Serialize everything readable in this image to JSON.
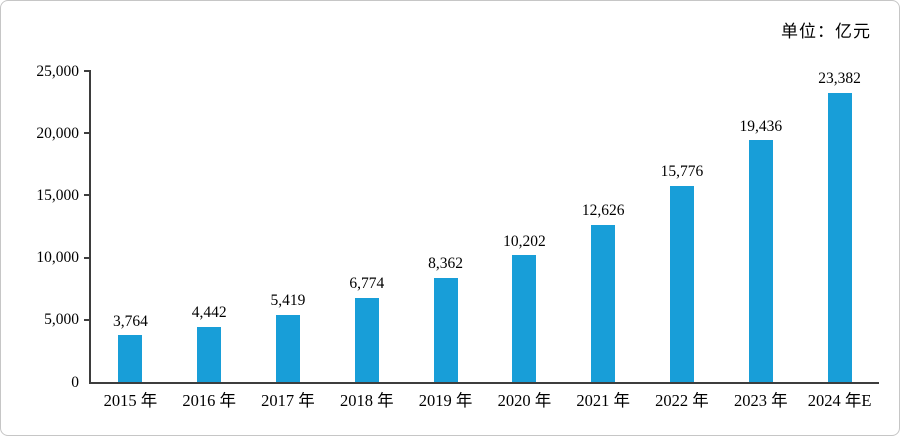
{
  "unit_label": "单位：亿元",
  "colors": {
    "bar": "#189ED8",
    "axis": "#3d3d3d",
    "text": "#000000",
    "frame_border": "#c6c6c6"
  },
  "chart_data": {
    "type": "bar",
    "title": "",
    "xlabel": "",
    "ylabel": "",
    "categories": [
      "2015 年",
      "2016 年",
      "2017 年",
      "2018 年",
      "2019 年",
      "2020 年",
      "2021 年",
      "2022 年",
      "2023 年",
      "2024 年E"
    ],
    "values": [
      3764,
      4442,
      5419,
      6774,
      8362,
      10202,
      12626,
      15776,
      19436,
      23382
    ],
    "value_labels": [
      "3,764",
      "4,442",
      "5,419",
      "6,774",
      "8,362",
      "10,202",
      "12,626",
      "15,776",
      "19,436",
      "23,382"
    ],
    "ylim": [
      0,
      25000
    ],
    "ytick_step": 5000,
    "ytick_labels": [
      "0",
      "5,000",
      "10,000",
      "15,000",
      "20,000",
      "25,000"
    ],
    "grid": false,
    "legend": "none",
    "bar_color": "#189ED8"
  }
}
